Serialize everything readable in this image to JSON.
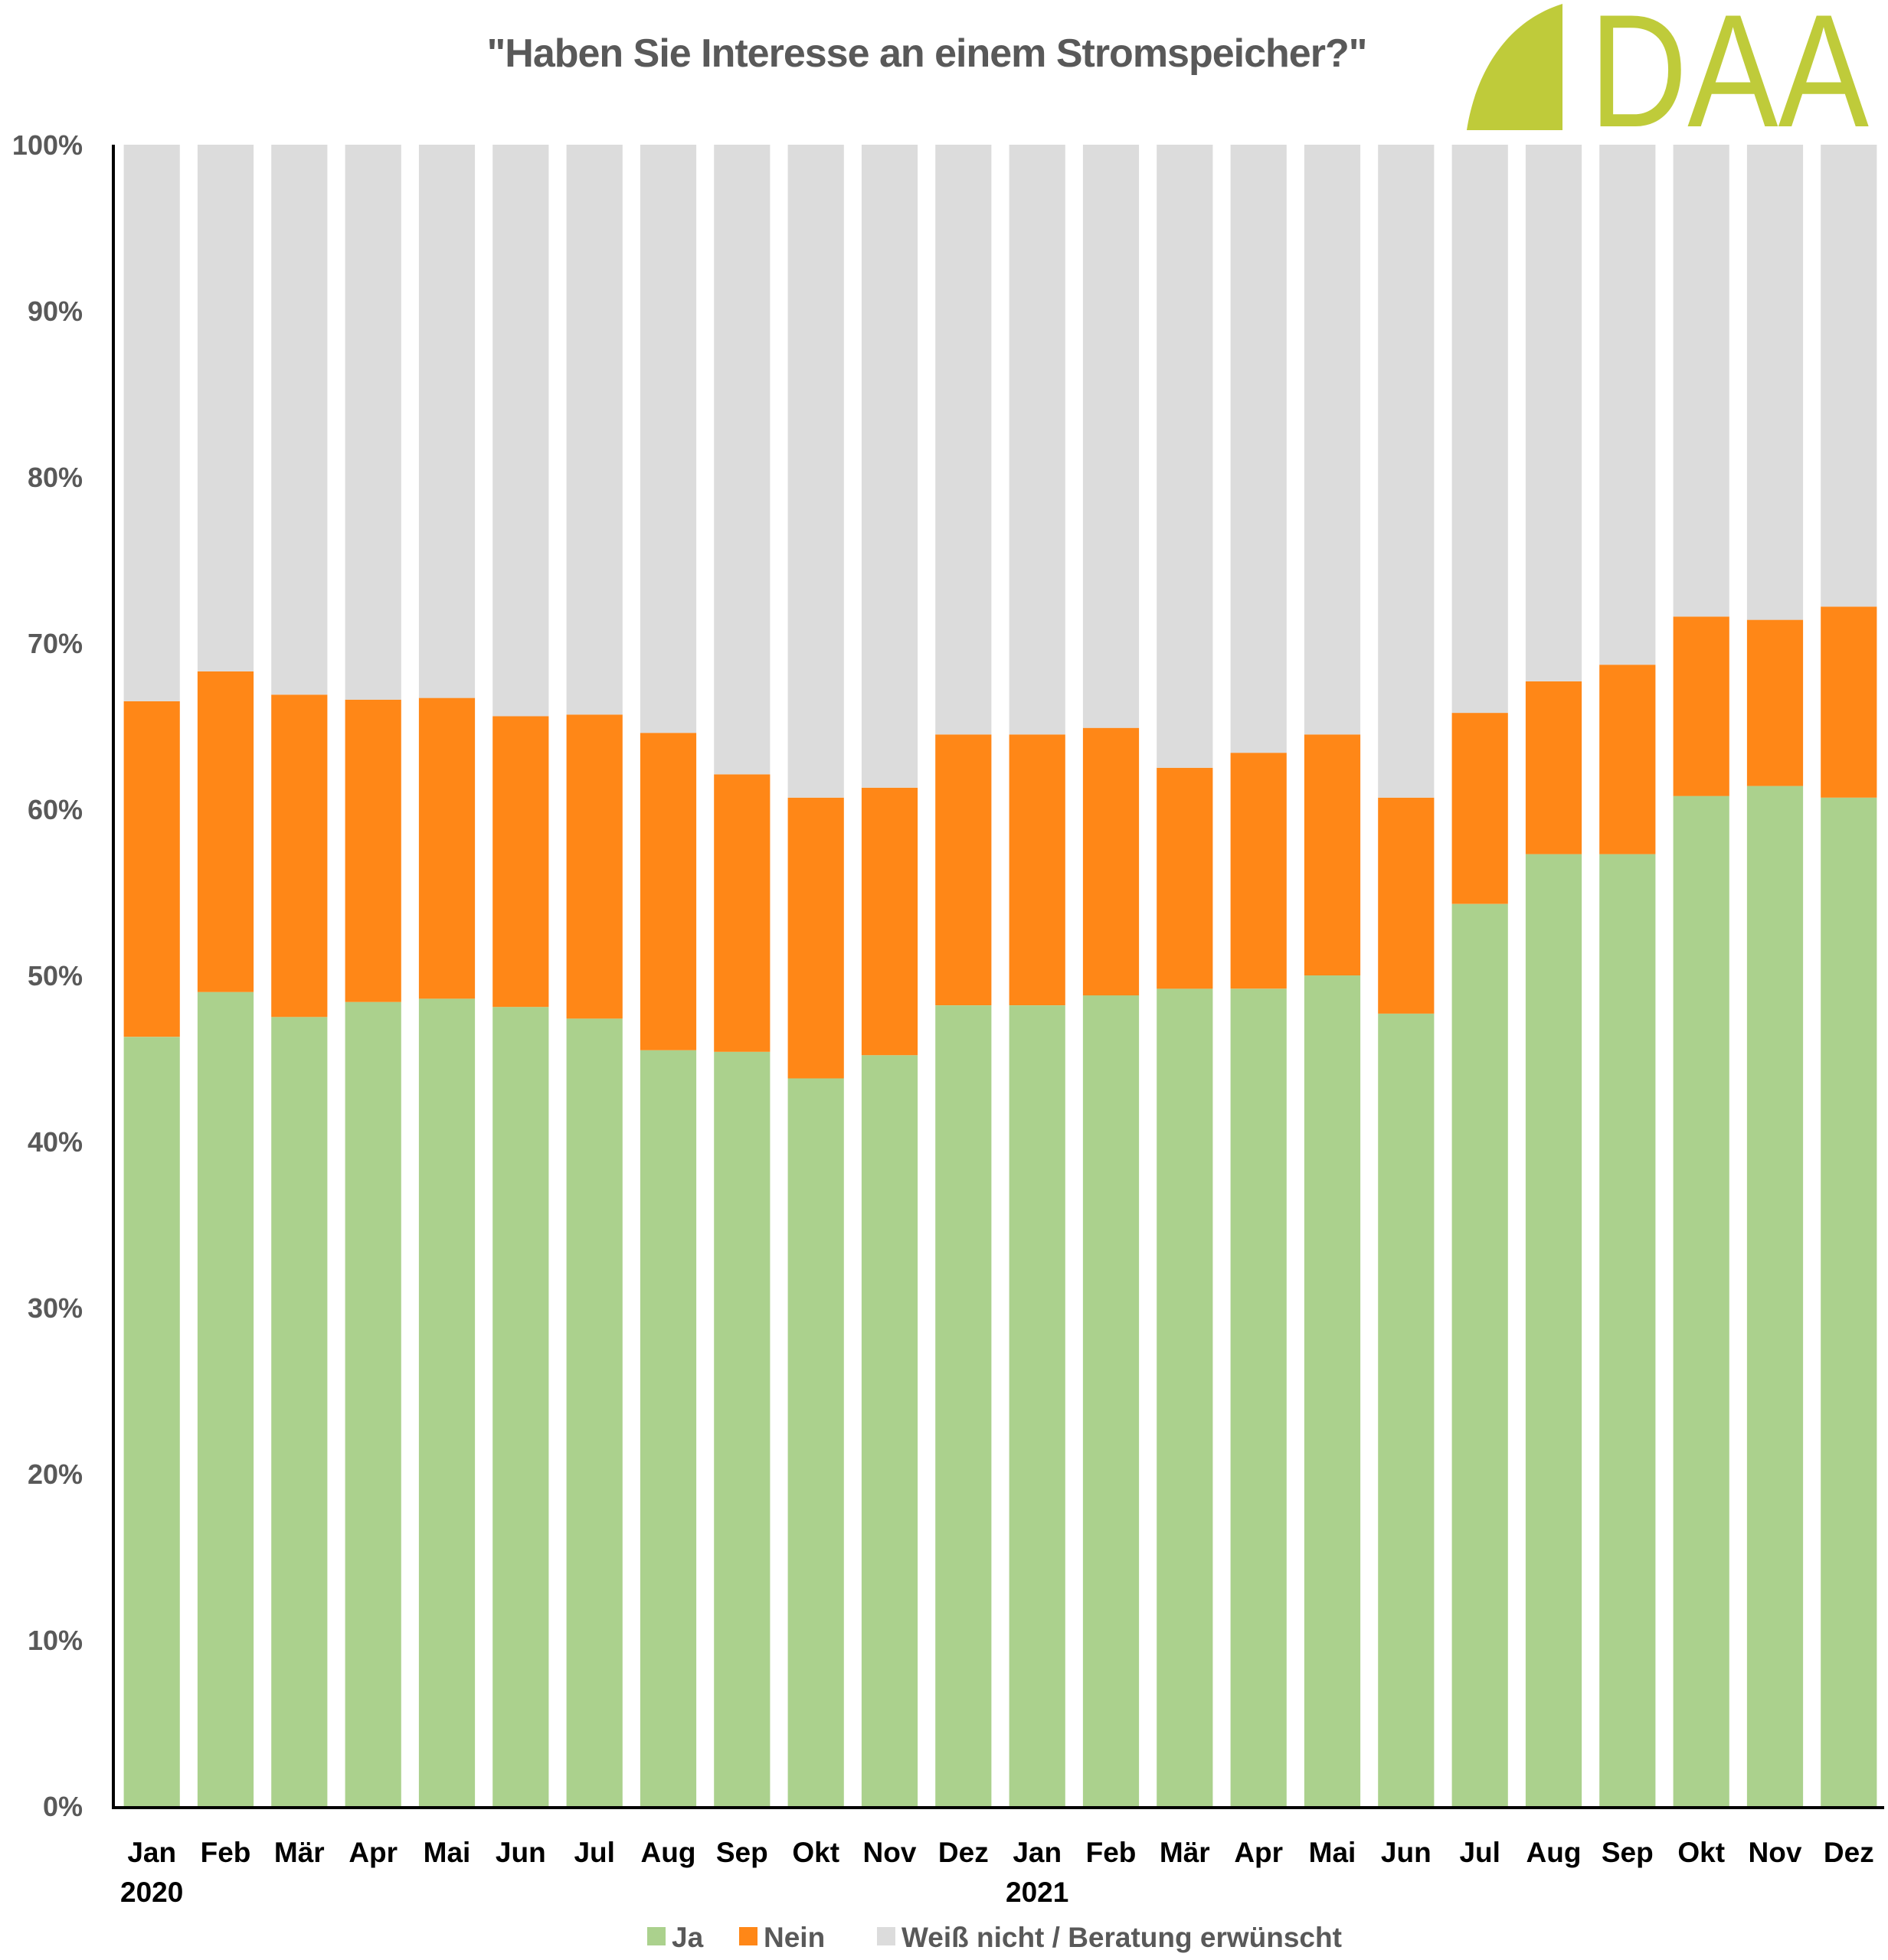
{
  "header": {
    "title": "\"Haben Sie Interesse an einem Stromspeicher?\"",
    "logo_text": "DAA",
    "logo_color": "#BFCB3A"
  },
  "chart_data": {
    "type": "bar",
    "stacked": true,
    "percent_stacked": true,
    "title": "\"Haben Sie Interesse an einem Stromspeicher?\"",
    "xlabel": "",
    "ylabel": "",
    "ylim": [
      0,
      100
    ],
    "y_ticks": [
      "0%",
      "10%",
      "20%",
      "30%",
      "40%",
      "50%",
      "60%",
      "70%",
      "80%",
      "90%",
      "100%"
    ],
    "grid": false,
    "legend_position": "bottom",
    "categories": [
      "Jan",
      "Feb",
      "Mär",
      "Apr",
      "Mai",
      "Jun",
      "Jul",
      "Aug",
      "Sep",
      "Okt",
      "Nov",
      "Dez",
      "Jan",
      "Feb",
      "Mär",
      "Apr",
      "Mai",
      "Jun",
      "Jul",
      "Aug",
      "Sep",
      "Okt",
      "Nov",
      "Dez"
    ],
    "category_groups": [
      {
        "label": "2020",
        "start_index": 0
      },
      {
        "label": "2021",
        "start_index": 12
      }
    ],
    "series": [
      {
        "name": "Ja",
        "color": "#ABD18D",
        "values": [
          46.3,
          49.0,
          47.5,
          48.4,
          48.6,
          48.1,
          47.4,
          45.5,
          45.4,
          43.8,
          45.2,
          48.2,
          48.2,
          48.8,
          49.2,
          49.2,
          50.0,
          47.7,
          54.3,
          57.3,
          57.3,
          60.8,
          61.4,
          60.7
        ]
      },
      {
        "name": "Nein",
        "color": "#FF8717",
        "values": [
          20.2,
          19.3,
          19.4,
          18.2,
          18.1,
          17.5,
          18.3,
          19.1,
          16.7,
          16.9,
          16.1,
          16.3,
          16.3,
          16.1,
          13.3,
          14.2,
          14.5,
          13.0,
          11.5,
          10.4,
          11.4,
          10.8,
          10.0,
          11.5
        ]
      },
      {
        "name": "Weiß nicht / Beratung erwünscht",
        "color": "#DCDCDC",
        "values": [
          33.5,
          31.7,
          33.1,
          33.4,
          33.3,
          34.4,
          34.3,
          35.4,
          37.9,
          39.3,
          38.7,
          35.5,
          35.5,
          35.1,
          37.5,
          36.6,
          35.5,
          39.3,
          34.2,
          32.3,
          31.3,
          28.4,
          28.6,
          27.8
        ]
      }
    ]
  }
}
